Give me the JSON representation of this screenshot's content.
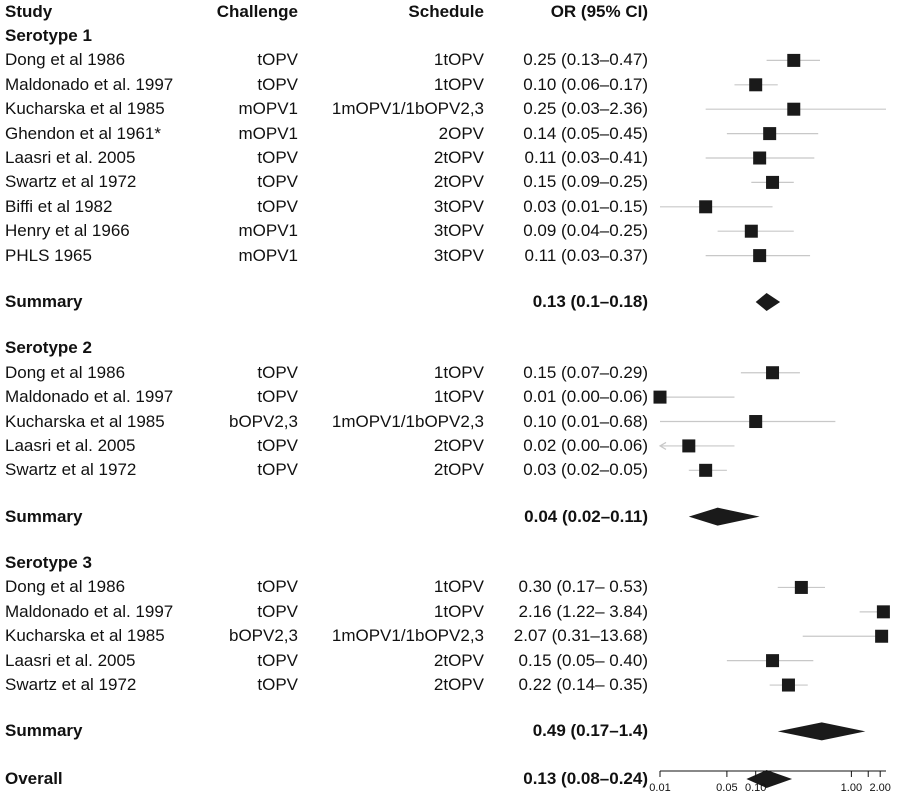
{
  "header": {
    "study": "Study",
    "challenge": "Challenge",
    "schedule": "Schedule",
    "or": "OR (95% CI)"
  },
  "sections": [
    {
      "title": "Serotype 1",
      "rows": [
        {
          "study": "Dong et al 1986",
          "challenge": "tOPV",
          "schedule": "1tOPV",
          "or_text": "0.25 (0.13–0.47)"
        },
        {
          "study": "Maldonado et al. 1997",
          "challenge": "tOPV",
          "schedule": "1tOPV",
          "or_text": "0.10 (0.06–0.17)"
        },
        {
          "study": "Kucharska et al 1985",
          "challenge": "mOPV1",
          "schedule": "1mOPV1/1bOPV2,3",
          "or_text": "0.25 (0.03–2.36)"
        },
        {
          "study": "Ghendon et al 1961*",
          "challenge": "mOPV1",
          "schedule": "2OPV",
          "or_text": "0.14 (0.05–0.45)"
        },
        {
          "study": "Laasri et al. 2005",
          "challenge": "tOPV",
          "schedule": "2tOPV",
          "or_text": "0.11 (0.03–0.41)"
        },
        {
          "study": "Swartz et al 1972",
          "challenge": "tOPV",
          "schedule": "2tOPV",
          "or_text": "0.15 (0.09–0.25)"
        },
        {
          "study": "Biffi et al 1982",
          "challenge": "tOPV",
          "schedule": "3tOPV",
          "or_text": "0.03 (0.01–0.15)"
        },
        {
          "study": "Henry et al 1966",
          "challenge": "mOPV1",
          "schedule": "3tOPV",
          "or_text": "0.09 (0.04–0.25)"
        },
        {
          "study": "PHLS 1965",
          "challenge": "mOPV1",
          "schedule": "3tOPV",
          "or_text": "0.11 (0.03–0.37)"
        }
      ],
      "summary_label": "Summary",
      "summary_text": "0.13 (0.1–0.18)"
    },
    {
      "title": "Serotype 2",
      "rows": [
        {
          "study": "Dong et al 1986",
          "challenge": "tOPV",
          "schedule": "1tOPV",
          "or_text": "0.15 (0.07–0.29)"
        },
        {
          "study": "Maldonado et al. 1997",
          "challenge": "tOPV",
          "schedule": "1tOPV",
          "or_text": "0.01 (0.00–0.06)"
        },
        {
          "study": "Kucharska et al 1985",
          "challenge": "bOPV2,3",
          "schedule": "1mOPV1/1bOPV2,3",
          "or_text": "0.10 (0.01–0.68)"
        },
        {
          "study": "Laasri et al. 2005",
          "challenge": "tOPV",
          "schedule": "2tOPV",
          "or_text": "0.02 (0.00–0.06)"
        },
        {
          "study": "Swartz et al 1972",
          "challenge": "tOPV",
          "schedule": "2tOPV",
          "or_text": "0.03 (0.02–0.05)"
        }
      ],
      "summary_label": "Summary",
      "summary_text": "0.04 (0.02–0.11)"
    },
    {
      "title": "Serotype 3",
      "rows": [
        {
          "study": "Dong et al 1986",
          "challenge": "tOPV",
          "schedule": "1tOPV",
          "or_text": "0.30 (0.17– 0.53)"
        },
        {
          "study": "Maldonado et al. 1997",
          "challenge": "tOPV",
          "schedule": "1tOPV",
          "or_text": "2.16 (1.22– 3.84)"
        },
        {
          "study": "Kucharska et al 1985",
          "challenge": "bOPV2,3",
          "schedule": "1mOPV1/1bOPV2,3",
          "or_text": "2.07 (0.31–13.68)"
        },
        {
          "study": "Laasri et al. 2005",
          "challenge": "tOPV",
          "schedule": "2tOPV",
          "or_text": "0.15 (0.05– 0.40)"
        },
        {
          "study": "Swartz et al 1972",
          "challenge": "tOPV",
          "schedule": "2tOPV",
          "or_text": "0.22 (0.14– 0.35)"
        }
      ],
      "summary_label": "Summary",
      "summary_text": "0.49 (0.17–1.4)"
    }
  ],
  "overall": {
    "label": "Overall",
    "text": "0.13 (0.08–0.24)"
  },
  "chart_data": {
    "type": "forest",
    "x_scale": "log",
    "xlim": [
      0.01,
      2.3
    ],
    "x_ticks": [
      0.01,
      0.05,
      0.1,
      1.0,
      2.0
    ],
    "x_tick_labels": [
      "0.01",
      "0.05",
      "0.10",
      "1.00",
      "2.00"
    ],
    "x_minor_ticks": [
      1.5
    ],
    "colors": {
      "marker": "#1a1a1a",
      "ci_line": "#c8c8c8",
      "diamond": "#1a1a1a"
    },
    "studies": [
      {
        "group": "Serotype 1",
        "study": "Dong et al 1986",
        "or": 0.25,
        "lo": 0.13,
        "hi": 0.47
      },
      {
        "group": "Serotype 1",
        "study": "Maldonado et al. 1997",
        "or": 0.1,
        "lo": 0.06,
        "hi": 0.17
      },
      {
        "group": "Serotype 1",
        "study": "Kucharska et al 1985",
        "or": 0.25,
        "lo": 0.03,
        "hi": 2.36
      },
      {
        "group": "Serotype 1",
        "study": "Ghendon et al 1961*",
        "or": 0.14,
        "lo": 0.05,
        "hi": 0.45
      },
      {
        "group": "Serotype 1",
        "study": "Laasri et al. 2005",
        "or": 0.11,
        "lo": 0.03,
        "hi": 0.41
      },
      {
        "group": "Serotype 1",
        "study": "Swartz et al 1972",
        "or": 0.15,
        "lo": 0.09,
        "hi": 0.25
      },
      {
        "group": "Serotype 1",
        "study": "Biffi et al 1982",
        "or": 0.03,
        "lo": 0.01,
        "hi": 0.15
      },
      {
        "group": "Serotype 1",
        "study": "Henry et al 1966",
        "or": 0.09,
        "lo": 0.04,
        "hi": 0.25
      },
      {
        "group": "Serotype 1",
        "study": "PHLS 1965",
        "or": 0.11,
        "lo": 0.03,
        "hi": 0.37
      },
      {
        "group": "Serotype 2",
        "study": "Dong et al 1986",
        "or": 0.15,
        "lo": 0.07,
        "hi": 0.29
      },
      {
        "group": "Serotype 2",
        "study": "Maldonado et al. 1997",
        "or": 0.01,
        "lo": 0.0,
        "hi": 0.06
      },
      {
        "group": "Serotype 2",
        "study": "Kucharska et al 1985",
        "or": 0.1,
        "lo": 0.01,
        "hi": 0.68
      },
      {
        "group": "Serotype 2",
        "study": "Laasri et al. 2005",
        "or": 0.02,
        "lo": 0.0,
        "hi": 0.06
      },
      {
        "group": "Serotype 2",
        "study": "Swartz et al 1972",
        "or": 0.03,
        "lo": 0.02,
        "hi": 0.05
      },
      {
        "group": "Serotype 3",
        "study": "Dong et al 1986",
        "or": 0.3,
        "lo": 0.17,
        "hi": 0.53
      },
      {
        "group": "Serotype 3",
        "study": "Maldonado et al. 1997",
        "or": 2.16,
        "lo": 1.22,
        "hi": 3.84
      },
      {
        "group": "Serotype 3",
        "study": "Kucharska et al 1985",
        "or": 2.07,
        "lo": 0.31,
        "hi": 13.68
      },
      {
        "group": "Serotype 3",
        "study": "Laasri et al. 2005",
        "or": 0.15,
        "lo": 0.05,
        "hi": 0.4
      },
      {
        "group": "Serotype 3",
        "study": "Swartz et al 1972",
        "or": 0.22,
        "lo": 0.14,
        "hi": 0.35
      }
    ],
    "summaries": [
      {
        "group": "Serotype 1",
        "or": 0.13,
        "lo": 0.1,
        "hi": 0.18
      },
      {
        "group": "Serotype 2",
        "or": 0.04,
        "lo": 0.02,
        "hi": 0.11
      },
      {
        "group": "Serotype 3",
        "or": 0.49,
        "lo": 0.17,
        "hi": 1.4
      },
      {
        "group": "Overall",
        "or": 0.13,
        "lo": 0.08,
        "hi": 0.24
      }
    ]
  }
}
